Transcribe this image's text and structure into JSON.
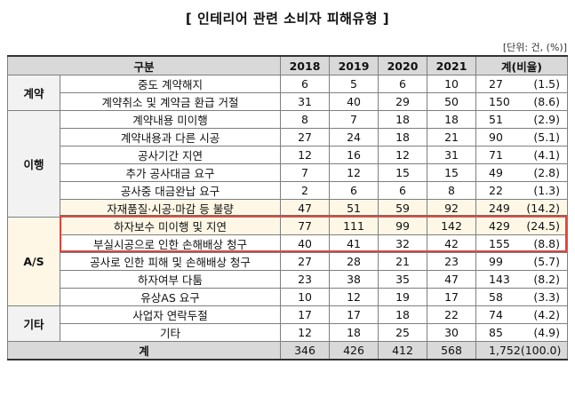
{
  "title": "[ 인테리어 관련 소비자 피해유형 ]",
  "unit": "[단위: 건, (%)]",
  "headers": {
    "category": "구분",
    "years": [
      "2018",
      "2019",
      "2020",
      "2021"
    ],
    "total": "계(비율)"
  },
  "rows": [
    {
      "cat": "계약",
      "item": "중도 계약해지",
      "vals": [
        "6",
        "5",
        "6",
        "10"
      ],
      "sum": "27",
      "pct": "(1.5)"
    },
    {
      "cat": "",
      "item": "계약취소 및 계약금 환급 거절",
      "vals": [
        "31",
        "40",
        "29",
        "50"
      ],
      "sum": "150",
      "pct": "(8.6)"
    },
    {
      "cat": "이행",
      "item": "계약내용 미이행",
      "vals": [
        "8",
        "7",
        "18",
        "18"
      ],
      "sum": "51",
      "pct": "(2.9)"
    },
    {
      "cat": "",
      "item": "계약내용과 다른 시공",
      "vals": [
        "27",
        "24",
        "18",
        "21"
      ],
      "sum": "90",
      "pct": "(5.1)"
    },
    {
      "cat": "",
      "item": "공사기간 지연",
      "vals": [
        "12",
        "16",
        "12",
        "31"
      ],
      "sum": "71",
      "pct": "(4.1)"
    },
    {
      "cat": "",
      "item": "추가 공사대금 요구",
      "vals": [
        "7",
        "12",
        "15",
        "15"
      ],
      "sum": "49",
      "pct": "(2.8)"
    },
    {
      "cat": "",
      "item": "공사중 대금완납 요구",
      "vals": [
        "2",
        "6",
        "6",
        "8"
      ],
      "sum": "22",
      "pct": "(1.3)"
    },
    {
      "cat": "",
      "item": "자재품질·시공·마감 등 불량",
      "vals": [
        "47",
        "51",
        "59",
        "92"
      ],
      "sum": "249",
      "pct": "(14.2)"
    },
    {
      "cat": "A/S",
      "item": "하자보수 미이행 및 지연",
      "vals": [
        "77",
        "111",
        "99",
        "142"
      ],
      "sum": "429",
      "pct": "(24.5)"
    },
    {
      "cat": "",
      "item": "부실시공으로 인한 손해배상 청구",
      "vals": [
        "40",
        "41",
        "32",
        "42"
      ],
      "sum": "155",
      "pct": "(8.8)"
    },
    {
      "cat": "",
      "item": "공사로 인한 피해 및 손해배상 청구",
      "vals": [
        "27",
        "28",
        "21",
        "23"
      ],
      "sum": "99",
      "pct": "(5.7)"
    },
    {
      "cat": "",
      "item": "하자여부 다툼",
      "vals": [
        "23",
        "38",
        "35",
        "47"
      ],
      "sum": "143",
      "pct": "(8.2)"
    },
    {
      "cat": "",
      "item": "유상AS 요구",
      "vals": [
        "10",
        "12",
        "19",
        "17"
      ],
      "sum": "58",
      "pct": "(3.3)"
    },
    {
      "cat": "기타",
      "item": "사업자 연락두절",
      "vals": [
        "17",
        "17",
        "18",
        "22"
      ],
      "sum": "74",
      "pct": "(4.2)"
    },
    {
      "cat": "",
      "item": "기타",
      "vals": [
        "12",
        "18",
        "25",
        "30"
      ],
      "sum": "85",
      "pct": "(4.9)"
    }
  ],
  "total": {
    "label": "계",
    "vals": [
      "346",
      "426",
      "412",
      "568"
    ],
    "sum": "1,752",
    "pct": "(100.0)"
  },
  "colors": {
    "highlight_border": "#e0443a",
    "header_bg": "#d9d9d9"
  }
}
